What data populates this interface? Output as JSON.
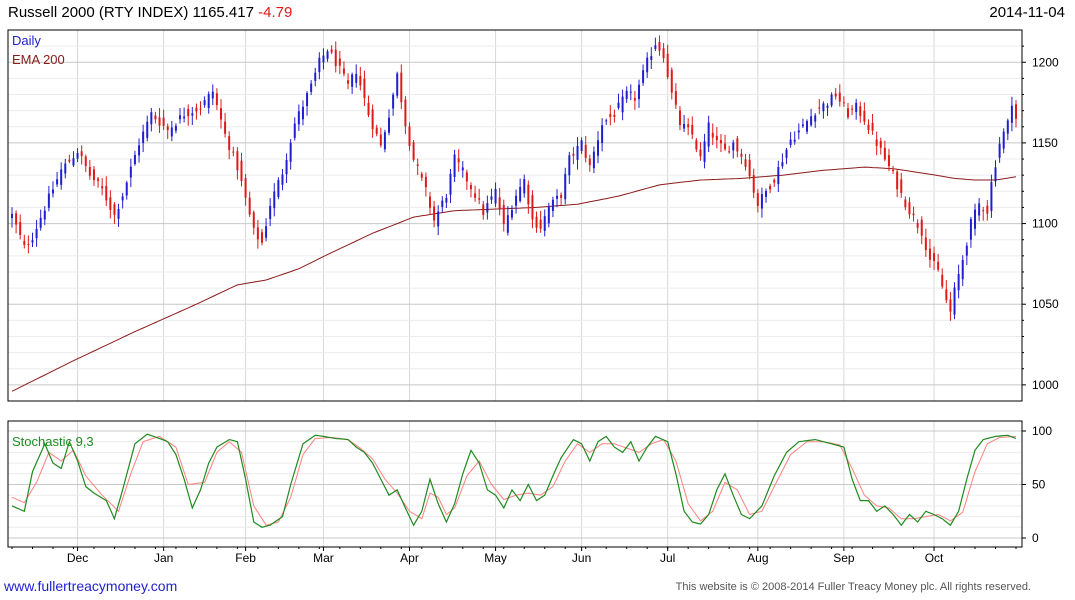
{
  "header": {
    "title": "Russell 2000 (RTY INDEX) 1165.417",
    "change": "-4.79",
    "date": "2014-11-04"
  },
  "footer": {
    "website": "www.fullertreacymoney.com",
    "copyright": "This website is © 2008-2014 Fuller Treacy Money plc. All rights reserved."
  },
  "colors": {
    "up": "#1f1fd0",
    "down": "#e01818",
    "ema": "#8b1a1a",
    "stoch_k": "#1f8a1f",
    "stoch_d": "#ff8080",
    "grid": "#d8d8d8"
  },
  "chart_data": [
    {
      "type": "candlestick",
      "title": "Russell 2000 (RTY INDEX)",
      "legend": [
        "Daily",
        "EMA 200"
      ],
      "ylim": [
        990,
        1220
      ],
      "yticks": [
        1000,
        1050,
        1100,
        1150,
        1200
      ],
      "month_labels": [
        "Dec",
        "Jan",
        "Feb",
        "Mar",
        "Apr",
        "May",
        "Jun",
        "Jul",
        "Aug",
        "Sep",
        "Oct"
      ],
      "month_day_index": [
        16,
        37,
        57,
        76,
        97,
        118,
        139,
        160,
        182,
        203,
        225
      ],
      "close_anchors": [
        [
          0,
          1105
        ],
        [
          3,
          1085
        ],
        [
          5,
          1092
        ],
        [
          8,
          1110
        ],
        [
          12,
          1133
        ],
        [
          16,
          1145
        ],
        [
          19,
          1130
        ],
        [
          22,
          1121
        ],
        [
          25,
          1105
        ],
        [
          27,
          1118
        ],
        [
          31,
          1150
        ],
        [
          34,
          1168
        ],
        [
          38,
          1158
        ],
        [
          42,
          1168
        ],
        [
          46,
          1172
        ],
        [
          49,
          1182
        ],
        [
          52,
          1155
        ],
        [
          55,
          1135
        ],
        [
          59,
          1095
        ],
        [
          61,
          1088
        ],
        [
          63,
          1112
        ],
        [
          66,
          1132
        ],
        [
          69,
          1162
        ],
        [
          73,
          1185
        ],
        [
          75,
          1200
        ],
        [
          77,
          1208
        ],
        [
          79,
          1200
        ],
        [
          82,
          1185
        ],
        [
          84,
          1195
        ],
        [
          87,
          1168
        ],
        [
          90,
          1148
        ],
        [
          92,
          1168
        ],
        [
          94,
          1192
        ],
        [
          96,
          1162
        ],
        [
          98,
          1140
        ],
        [
          101,
          1120
        ],
        [
          103,
          1102
        ],
        [
          106,
          1118
        ],
        [
          108,
          1140
        ],
        [
          110,
          1132
        ],
        [
          113,
          1118
        ],
        [
          115,
          1107
        ],
        [
          118,
          1120
        ],
        [
          120,
          1098
        ],
        [
          123,
          1118
        ],
        [
          125,
          1127
        ],
        [
          127,
          1102
        ],
        [
          129,
          1098
        ],
        [
          131,
          1110
        ],
        [
          134,
          1118
        ],
        [
          136,
          1140
        ],
        [
          139,
          1150
        ],
        [
          141,
          1135
        ],
        [
          144,
          1162
        ],
        [
          147,
          1168
        ],
        [
          150,
          1180
        ],
        [
          152,
          1178
        ],
        [
          155,
          1200
        ],
        [
          157,
          1212
        ],
        [
          159,
          1205
        ],
        [
          161,
          1180
        ],
        [
          163,
          1162
        ],
        [
          166,
          1155
        ],
        [
          168,
          1140
        ],
        [
          170,
          1160
        ],
        [
          172,
          1150
        ],
        [
          174,
          1145
        ],
        [
          176,
          1150
        ],
        [
          179,
          1138
        ],
        [
          182,
          1112
        ],
        [
          184,
          1120
        ],
        [
          186,
          1128
        ],
        [
          188,
          1140
        ],
        [
          190,
          1152
        ],
        [
          193,
          1160
        ],
        [
          196,
          1170
        ],
        [
          199,
          1175
        ],
        [
          201,
          1180
        ],
        [
          204,
          1168
        ],
        [
          206,
          1172
        ],
        [
          208,
          1165
        ],
        [
          210,
          1155
        ],
        [
          213,
          1140
        ],
        [
          215,
          1130
        ],
        [
          217,
          1118
        ],
        [
          219,
          1108
        ],
        [
          222,
          1095
        ],
        [
          224,
          1078
        ],
        [
          226,
          1070
        ],
        [
          228,
          1052
        ],
        [
          229,
          1045
        ],
        [
          230,
          1058
        ],
        [
          232,
          1078
        ],
        [
          234,
          1100
        ],
        [
          236,
          1112
        ],
        [
          238,
          1108
        ],
        [
          239,
          1125
        ],
        [
          241,
          1150
        ],
        [
          243,
          1162
        ],
        [
          244,
          1176
        ],
        [
          245,
          1165
        ]
      ],
      "ema200_anchors": [
        [
          0,
          996
        ],
        [
          15,
          1015
        ],
        [
          30,
          1033
        ],
        [
          45,
          1050
        ],
        [
          55,
          1062
        ],
        [
          62,
          1065
        ],
        [
          70,
          1072
        ],
        [
          78,
          1082
        ],
        [
          88,
          1094
        ],
        [
          98,
          1104
        ],
        [
          108,
          1108
        ],
        [
          118,
          1109
        ],
        [
          128,
          1110
        ],
        [
          138,
          1112
        ],
        [
          148,
          1117
        ],
        [
          158,
          1124
        ],
        [
          168,
          1127
        ],
        [
          178,
          1128
        ],
        [
          188,
          1130
        ],
        [
          198,
          1133
        ],
        [
          208,
          1135
        ],
        [
          215,
          1134
        ],
        [
          223,
          1131
        ],
        [
          230,
          1128
        ],
        [
          235,
          1127
        ],
        [
          240,
          1127
        ],
        [
          245,
          1129
        ]
      ]
    },
    {
      "type": "line",
      "title": "Stochastic 9,3",
      "series_names": [
        "%K",
        "%D"
      ],
      "ylim": [
        0,
        100
      ],
      "yticks": [
        0,
        50,
        100
      ],
      "k_anchors": [
        [
          0,
          30
        ],
        [
          3,
          25
        ],
        [
          5,
          62
        ],
        [
          8,
          88
        ],
        [
          10,
          70
        ],
        [
          12,
          65
        ],
        [
          14,
          90
        ],
        [
          16,
          72
        ],
        [
          18,
          48
        ],
        [
          20,
          42
        ],
        [
          23,
          35
        ],
        [
          25,
          18
        ],
        [
          27,
          45
        ],
        [
          30,
          88
        ],
        [
          33,
          97
        ],
        [
          36,
          93
        ],
        [
          38,
          90
        ],
        [
          40,
          78
        ],
        [
          42,
          55
        ],
        [
          44,
          28
        ],
        [
          46,
          45
        ],
        [
          48,
          70
        ],
        [
          50,
          85
        ],
        [
          53,
          92
        ],
        [
          55,
          90
        ],
        [
          57,
          55
        ],
        [
          59,
          15
        ],
        [
          61,
          10
        ],
        [
          63,
          12
        ],
        [
          66,
          20
        ],
        [
          68,
          50
        ],
        [
          71,
          88
        ],
        [
          74,
          96
        ],
        [
          76,
          95
        ],
        [
          79,
          93
        ],
        [
          82,
          92
        ],
        [
          84,
          85
        ],
        [
          86,
          80
        ],
        [
          88,
          70
        ],
        [
          90,
          55
        ],
        [
          92,
          40
        ],
        [
          94,
          45
        ],
        [
          96,
          28
        ],
        [
          98,
          12
        ],
        [
          100,
          25
        ],
        [
          102,
          55
        ],
        [
          104,
          32
        ],
        [
          106,
          15
        ],
        [
          108,
          32
        ],
        [
          110,
          60
        ],
        [
          112,
          82
        ],
        [
          114,
          70
        ],
        [
          116,
          45
        ],
        [
          118,
          40
        ],
        [
          120,
          28
        ],
        [
          122,
          45
        ],
        [
          124,
          35
        ],
        [
          126,
          50
        ],
        [
          128,
          35
        ],
        [
          130,
          40
        ],
        [
          132,
          58
        ],
        [
          134,
          75
        ],
        [
          137,
          92
        ],
        [
          139,
          88
        ],
        [
          141,
          72
        ],
        [
          143,
          90
        ],
        [
          145,
          95
        ],
        [
          147,
          85
        ],
        [
          149,
          80
        ],
        [
          151,
          90
        ],
        [
          153,
          72
        ],
        [
          155,
          85
        ],
        [
          157,
          95
        ],
        [
          160,
          90
        ],
        [
          162,
          60
        ],
        [
          164,
          25
        ],
        [
          166,
          15
        ],
        [
          168,
          13
        ],
        [
          170,
          22
        ],
        [
          172,
          45
        ],
        [
          174,
          60
        ],
        [
          176,
          40
        ],
        [
          178,
          22
        ],
        [
          180,
          18
        ],
        [
          183,
          30
        ],
        [
          186,
          58
        ],
        [
          189,
          80
        ],
        [
          192,
          90
        ],
        [
          196,
          92
        ],
        [
          200,
          88
        ],
        [
          203,
          85
        ],
        [
          205,
          55
        ],
        [
          207,
          35
        ],
        [
          209,
          35
        ],
        [
          211,
          25
        ],
        [
          213,
          30
        ],
        [
          215,
          22
        ],
        [
          217,
          12
        ],
        [
          219,
          22
        ],
        [
          221,
          15
        ],
        [
          223,
          25
        ],
        [
          225,
          22
        ],
        [
          227,
          18
        ],
        [
          229,
          12
        ],
        [
          231,
          25
        ],
        [
          233,
          55
        ],
        [
          235,
          82
        ],
        [
          237,
          92
        ],
        [
          240,
          95
        ],
        [
          243,
          96
        ],
        [
          245,
          93
        ]
      ],
      "d_anchors": [
        [
          0,
          38
        ],
        [
          3,
          33
        ],
        [
          6,
          52
        ],
        [
          9,
          80
        ],
        [
          12,
          72
        ],
        [
          15,
          82
        ],
        [
          18,
          58
        ],
        [
          22,
          40
        ],
        [
          26,
          25
        ],
        [
          29,
          60
        ],
        [
          32,
          90
        ],
        [
          36,
          95
        ],
        [
          40,
          85
        ],
        [
          43,
          50
        ],
        [
          47,
          52
        ],
        [
          50,
          80
        ],
        [
          53,
          90
        ],
        [
          56,
          80
        ],
        [
          59,
          30
        ],
        [
          62,
          12
        ],
        [
          65,
          15
        ],
        [
          68,
          38
        ],
        [
          71,
          78
        ],
        [
          74,
          93
        ],
        [
          78,
          94
        ],
        [
          82,
          92
        ],
        [
          85,
          84
        ],
        [
          88,
          74
        ],
        [
          91,
          55
        ],
        [
          94,
          42
        ],
        [
          97,
          25
        ],
        [
          100,
          18
        ],
        [
          102,
          42
        ],
        [
          104,
          38
        ],
        [
          106,
          22
        ],
        [
          108,
          28
        ],
        [
          111,
          58
        ],
        [
          114,
          72
        ],
        [
          117,
          50
        ],
        [
          120,
          36
        ],
        [
          123,
          40
        ],
        [
          126,
          42
        ],
        [
          129,
          40
        ],
        [
          132,
          48
        ],
        [
          135,
          72
        ],
        [
          138,
          88
        ],
        [
          141,
          80
        ],
        [
          144,
          88
        ],
        [
          147,
          88
        ],
        [
          150,
          84
        ],
        [
          153,
          80
        ],
        [
          156,
          88
        ],
        [
          159,
          92
        ],
        [
          162,
          72
        ],
        [
          165,
          32
        ],
        [
          168,
          16
        ],
        [
          171,
          25
        ],
        [
          174,
          52
        ],
        [
          177,
          45
        ],
        [
          180,
          22
        ],
        [
          183,
          25
        ],
        [
          186,
          48
        ],
        [
          190,
          78
        ],
        [
          194,
          90
        ],
        [
          198,
          90
        ],
        [
          202,
          87
        ],
        [
          205,
          65
        ],
        [
          208,
          40
        ],
        [
          211,
          30
        ],
        [
          214,
          28
        ],
        [
          217,
          18
        ],
        [
          220,
          18
        ],
        [
          223,
          20
        ],
        [
          226,
          22
        ],
        [
          229,
          16
        ],
        [
          232,
          24
        ],
        [
          235,
          62
        ],
        [
          238,
          88
        ],
        [
          241,
          94
        ],
        [
          245,
          95
        ]
      ]
    }
  ]
}
